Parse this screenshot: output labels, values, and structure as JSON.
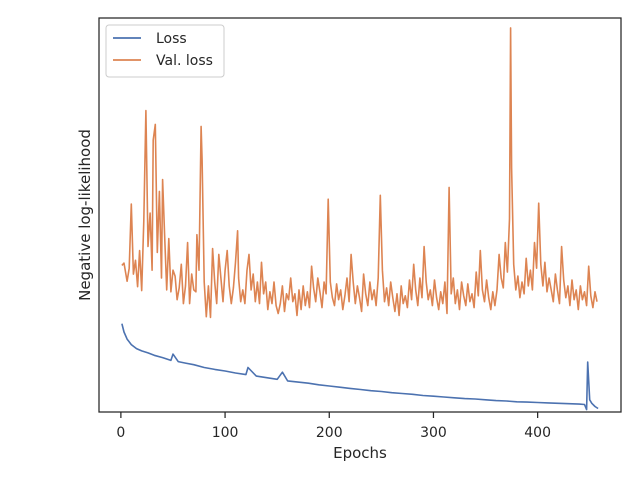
{
  "chart_data": {
    "type": "line",
    "title": "",
    "xlabel": "Epochs",
    "ylabel": "Negative log-likelihood",
    "xlim": [
      -21,
      480
    ],
    "ylim": [
      0,
      100
    ],
    "x_ticks": [
      0,
      100,
      200,
      300,
      400
    ],
    "y_ticks_shown": false,
    "grid": false,
    "legend_position": "upper-left",
    "series": [
      {
        "name": "Loss",
        "color": "#4c72b0",
        "points": [
          [
            1,
            22.4
          ],
          [
            3,
            20.3
          ],
          [
            6,
            18.5
          ],
          [
            10,
            17.1
          ],
          [
            15,
            16.1
          ],
          [
            20,
            15.5
          ],
          [
            26,
            15.0
          ],
          [
            32,
            14.4
          ],
          [
            40,
            13.8
          ],
          [
            48,
            13.1
          ],
          [
            50,
            14.7
          ],
          [
            55,
            12.8
          ],
          [
            62,
            12.4
          ],
          [
            70,
            12.0
          ],
          [
            80,
            11.3
          ],
          [
            90,
            10.8
          ],
          [
            100,
            10.4
          ],
          [
            110,
            9.9
          ],
          [
            120,
            9.5
          ],
          [
            122,
            11.3
          ],
          [
            130,
            9.1
          ],
          [
            140,
            8.7
          ],
          [
            150,
            8.3
          ],
          [
            155,
            10.1
          ],
          [
            160,
            7.9
          ],
          [
            170,
            7.6
          ],
          [
            180,
            7.3
          ],
          [
            190,
            6.9
          ],
          [
            200,
            6.6
          ],
          [
            210,
            6.3
          ],
          [
            220,
            6.0
          ],
          [
            230,
            5.7
          ],
          [
            240,
            5.4
          ],
          [
            250,
            5.2
          ],
          [
            260,
            4.9
          ],
          [
            270,
            4.7
          ],
          [
            280,
            4.5
          ],
          [
            290,
            4.2
          ],
          [
            300,
            4.0
          ],
          [
            310,
            3.8
          ],
          [
            320,
            3.6
          ],
          [
            330,
            3.4
          ],
          [
            340,
            3.3
          ],
          [
            350,
            3.1
          ],
          [
            360,
            2.9
          ],
          [
            370,
            2.8
          ],
          [
            380,
            2.6
          ],
          [
            390,
            2.5
          ],
          [
            400,
            2.4
          ],
          [
            410,
            2.3
          ],
          [
            420,
            2.2
          ],
          [
            430,
            2.1
          ],
          [
            440,
            2.0
          ],
          [
            445,
            1.9
          ],
          [
            447,
            0.6
          ],
          [
            448,
            12.7
          ],
          [
            450,
            3.1
          ],
          [
            452,
            2.2
          ],
          [
            455,
            1.4
          ],
          [
            458,
            0.9
          ]
        ]
      },
      {
        "name": "Val. loss",
        "color": "#dd8452",
        "points": [
          [
            1,
            37.2
          ],
          [
            3,
            37.8
          ],
          [
            6,
            33.2
          ],
          [
            8,
            36.5
          ],
          [
            10,
            52.8
          ],
          [
            12,
            35.0
          ],
          [
            14,
            38.5
          ],
          [
            16,
            31.8
          ],
          [
            18,
            41.0
          ],
          [
            20,
            30.8
          ],
          [
            22,
            48.5
          ],
          [
            24,
            76.5
          ],
          [
            26,
            42.0
          ],
          [
            28,
            50.5
          ],
          [
            30,
            36.0
          ],
          [
            31,
            69.0
          ],
          [
            33,
            73.0
          ],
          [
            35,
            40.5
          ],
          [
            37,
            56.0
          ],
          [
            39,
            34.0
          ],
          [
            40,
            59.0
          ],
          [
            42,
            45.0
          ],
          [
            44,
            31.0
          ],
          [
            46,
            44.0
          ],
          [
            48,
            30.5
          ],
          [
            50,
            36.0
          ],
          [
            52,
            34.5
          ],
          [
            54,
            28.5
          ],
          [
            56,
            31.5
          ],
          [
            58,
            37.5
          ],
          [
            60,
            27.5
          ],
          [
            62,
            32.0
          ],
          [
            64,
            43.0
          ],
          [
            66,
            27.5
          ],
          [
            68,
            35.0
          ],
          [
            70,
            31.0
          ],
          [
            72,
            30.5
          ],
          [
            73,
            45.0
          ],
          [
            75,
            36.0
          ],
          [
            77,
            72.5
          ],
          [
            78,
            64.0
          ],
          [
            80,
            33.0
          ],
          [
            82,
            24.2
          ],
          [
            84,
            32.0
          ],
          [
            86,
            24.0
          ],
          [
            88,
            41.5
          ],
          [
            90,
            33.0
          ],
          [
            92,
            27.5
          ],
          [
            94,
            40.0
          ],
          [
            96,
            34.0
          ],
          [
            98,
            28.0
          ],
          [
            100,
            36.0
          ],
          [
            102,
            41.0
          ],
          [
            104,
            32.0
          ],
          [
            106,
            27.5
          ],
          [
            108,
            31.5
          ],
          [
            110,
            38.0
          ],
          [
            112,
            46.0
          ],
          [
            113,
            34.0
          ],
          [
            115,
            28.0
          ],
          [
            117,
            31.0
          ],
          [
            119,
            27.5
          ],
          [
            121,
            36.0
          ],
          [
            123,
            40.0
          ],
          [
            125,
            31.0
          ],
          [
            127,
            35.0
          ],
          [
            129,
            28.0
          ],
          [
            131,
            33.0
          ],
          [
            133,
            27.5
          ],
          [
            135,
            38.0
          ],
          [
            137,
            30.0
          ],
          [
            139,
            33.0
          ],
          [
            141,
            26.0
          ],
          [
            143,
            30.5
          ],
          [
            145,
            27.5
          ],
          [
            147,
            33.0
          ],
          [
            149,
            27.0
          ],
          [
            151,
            25.0
          ],
          [
            153,
            27.5
          ],
          [
            155,
            32.0
          ],
          [
            157,
            25.5
          ],
          [
            159,
            30.0
          ],
          [
            161,
            28.5
          ],
          [
            163,
            34.0
          ],
          [
            165,
            28.0
          ],
          [
            167,
            30.0
          ],
          [
            169,
            24.5
          ],
          [
            171,
            31.0
          ],
          [
            173,
            26.0
          ],
          [
            175,
            32.0
          ],
          [
            177,
            27.0
          ],
          [
            179,
            30.5
          ],
          [
            181,
            26.5
          ],
          [
            183,
            37.0
          ],
          [
            185,
            31.5
          ],
          [
            187,
            28.0
          ],
          [
            189,
            34.0
          ],
          [
            191,
            30.5
          ],
          [
            193,
            26.5
          ],
          [
            195,
            33.0
          ],
          [
            197,
            30.0
          ],
          [
            199,
            54.0
          ],
          [
            201,
            33.0
          ],
          [
            203,
            29.0
          ],
          [
            205,
            27.0
          ],
          [
            207,
            32.5
          ],
          [
            209,
            28.5
          ],
          [
            211,
            31.0
          ],
          [
            213,
            26.0
          ],
          [
            215,
            29.5
          ],
          [
            217,
            34.0
          ],
          [
            219,
            28.0
          ],
          [
            221,
            40.0
          ],
          [
            223,
            33.0
          ],
          [
            225,
            27.5
          ],
          [
            227,
            32.0
          ],
          [
            229,
            29.0
          ],
          [
            231,
            25.5
          ],
          [
            233,
            35.0
          ],
          [
            235,
            30.0
          ],
          [
            237,
            27.0
          ],
          [
            239,
            33.0
          ],
          [
            241,
            28.5
          ],
          [
            243,
            31.0
          ],
          [
            245,
            27.0
          ],
          [
            247,
            34.0
          ],
          [
            249,
            55.0
          ],
          [
            251,
            36.0
          ],
          [
            253,
            28.0
          ],
          [
            255,
            31.5
          ],
          [
            257,
            27.0
          ],
          [
            259,
            33.0
          ],
          [
            261,
            29.0
          ],
          [
            263,
            25.5
          ],
          [
            265,
            30.0
          ],
          [
            267,
            24.5
          ],
          [
            269,
            32.0
          ],
          [
            271,
            27.5
          ],
          [
            273,
            29.5
          ],
          [
            275,
            26.5
          ],
          [
            277,
            33.5
          ],
          [
            279,
            28.5
          ],
          [
            281,
            37.5
          ],
          [
            283,
            31.0
          ],
          [
            285,
            27.0
          ],
          [
            287,
            34.0
          ],
          [
            289,
            29.0
          ],
          [
            291,
            42.0
          ],
          [
            293,
            33.0
          ],
          [
            295,
            28.5
          ],
          [
            297,
            31.0
          ],
          [
            299,
            27.0
          ],
          [
            301,
            33.5
          ],
          [
            303,
            29.0
          ],
          [
            305,
            26.0
          ],
          [
            307,
            30.5
          ],
          [
            309,
            27.5
          ],
          [
            311,
            33.0
          ],
          [
            313,
            25.0
          ],
          [
            315,
            57.0
          ],
          [
            317,
            30.0
          ],
          [
            319,
            34.0
          ],
          [
            321,
            27.5
          ],
          [
            323,
            31.0
          ],
          [
            325,
            26.0
          ],
          [
            327,
            33.0
          ],
          [
            329,
            29.5
          ],
          [
            331,
            27.0
          ],
          [
            333,
            32.5
          ],
          [
            335,
            28.0
          ],
          [
            337,
            30.0
          ],
          [
            339,
            26.5
          ],
          [
            341,
            35.5
          ],
          [
            343,
            29.5
          ],
          [
            345,
            41.0
          ],
          [
            347,
            31.0
          ],
          [
            349,
            28.0
          ],
          [
            351,
            33.5
          ],
          [
            353,
            29.0
          ],
          [
            355,
            26.0
          ],
          [
            357,
            30.5
          ],
          [
            359,
            27.0
          ],
          [
            361,
            31.0
          ],
          [
            363,
            40.0
          ],
          [
            365,
            34.0
          ],
          [
            367,
            31.5
          ],
          [
            369,
            43.0
          ],
          [
            371,
            35.5
          ],
          [
            373,
            49.0
          ],
          [
            374,
            97.5
          ],
          [
            375,
            62.0
          ],
          [
            377,
            37.5
          ],
          [
            379,
            31.0
          ],
          [
            381,
            34.5
          ],
          [
            383,
            29.0
          ],
          [
            385,
            33.0
          ],
          [
            387,
            30.0
          ],
          [
            389,
            39.0
          ],
          [
            391,
            32.0
          ],
          [
            393,
            36.0
          ],
          [
            395,
            31.0
          ],
          [
            397,
            43.0
          ],
          [
            399,
            36.5
          ],
          [
            401,
            53.0
          ],
          [
            403,
            37.5
          ],
          [
            405,
            32.0
          ],
          [
            407,
            38.0
          ],
          [
            409,
            30.5
          ],
          [
            411,
            34.0
          ],
          [
            413,
            31.0
          ],
          [
            415,
            28.0
          ],
          [
            417,
            35.0
          ],
          [
            419,
            31.0
          ],
          [
            421,
            27.5
          ],
          [
            423,
            42.0
          ],
          [
            425,
            33.5
          ],
          [
            427,
            29.0
          ],
          [
            429,
            32.0
          ],
          [
            431,
            27.0
          ],
          [
            433,
            33.5
          ],
          [
            435,
            28.5
          ],
          [
            437,
            31.0
          ],
          [
            439,
            26.0
          ],
          [
            441,
            32.0
          ],
          [
            443,
            28.5
          ],
          [
            445,
            30.5
          ],
          [
            447,
            27.0
          ],
          [
            449,
            37.0
          ],
          [
            451,
            29.5
          ],
          [
            453,
            26.5
          ],
          [
            455,
            30.5
          ],
          [
            457,
            28.0
          ]
        ]
      }
    ]
  }
}
